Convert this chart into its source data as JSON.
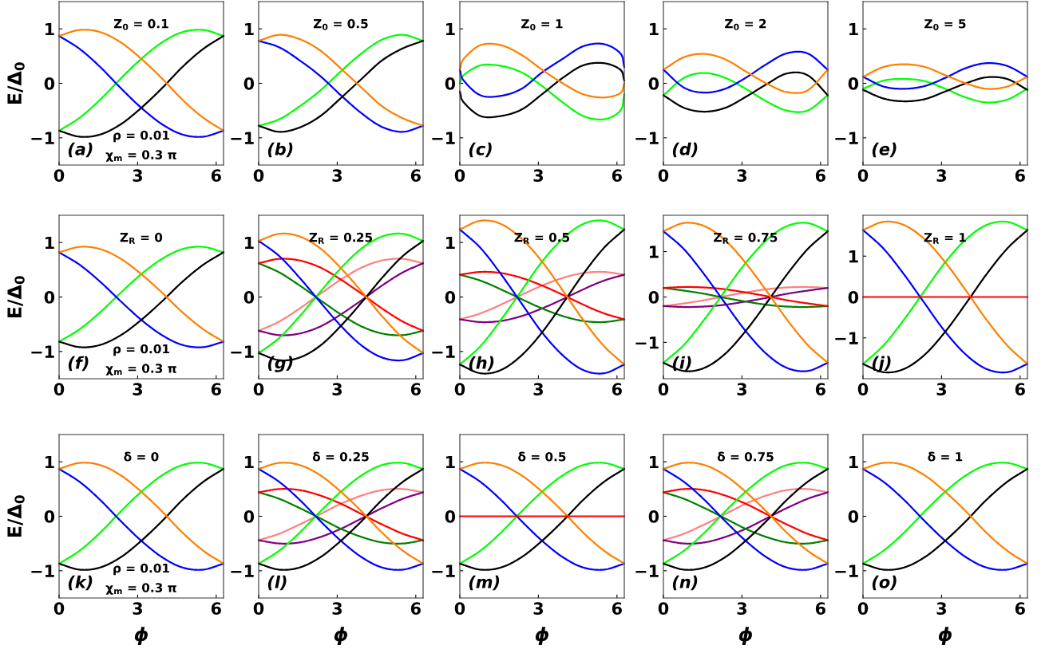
{
  "chart_data": [
    {
      "type": "line",
      "title": "Z$_{0}$ = 0.1",
      "ylabel": "E/Δ$_{0}$",
      "annotations": [
        "(a)",
        "ρ = 0.01",
        "χ$_{m}$ = 0.3 π"
      ],
      "xlim": [
        0,
        6.28
      ],
      "ylim": [
        -1.5,
        1.5
      ],
      "xticks": [
        0,
        3,
        6
      ],
      "yticks": [
        -1,
        0,
        1
      ],
      "x": [
        0,
        0.79,
        1.57,
        2.36,
        3.14,
        3.93,
        4.71,
        5.5,
        6.28
      ],
      "series": [
        {
          "color": "#00ff00",
          "values": [
            -0.87,
            -0.63,
            -0.3,
            0.09,
            0.45,
            0.75,
            0.94,
            0.98,
            0.87
          ]
        },
        {
          "color": "#0000ff",
          "values": [
            0.87,
            0.63,
            0.3,
            -0.09,
            -0.45,
            -0.75,
            -0.94,
            -0.98,
            -0.87
          ]
        },
        {
          "color": "#000000",
          "values": [
            -0.87,
            -0.98,
            -0.94,
            -0.75,
            -0.45,
            -0.09,
            0.3,
            0.63,
            0.87
          ]
        },
        {
          "color": "#ff8000",
          "values": [
            0.87,
            0.98,
            0.94,
            0.75,
            0.45,
            0.09,
            -0.3,
            -0.63,
            -0.87
          ]
        }
      ]
    },
    {
      "type": "line",
      "title": "Z$_{0}$ = 0.5",
      "annotations": [
        "(b)"
      ],
      "xlim": [
        0,
        6.28
      ],
      "ylim": [
        -1.5,
        1.5
      ],
      "xticks": [
        0,
        3,
        6
      ],
      "yticks": [
        -1,
        0,
        1
      ],
      "x": [
        0,
        0.79,
        1.57,
        2.36,
        3.14,
        3.93,
        4.71,
        5.5,
        6.28
      ],
      "series": [
        {
          "color": "#00ff00",
          "values": [
            -0.78,
            -0.66,
            -0.42,
            -0.13,
            0.22,
            0.55,
            0.8,
            0.89,
            0.78
          ]
        },
        {
          "color": "#0000ff",
          "values": [
            0.78,
            0.66,
            0.42,
            0.13,
            -0.22,
            -0.55,
            -0.8,
            -0.89,
            -0.78
          ]
        },
        {
          "color": "#000000",
          "values": [
            -0.78,
            -0.89,
            -0.81,
            -0.6,
            -0.27,
            0.08,
            0.42,
            0.64,
            0.78
          ]
        },
        {
          "color": "#ff8000",
          "values": [
            0.78,
            0.89,
            0.81,
            0.6,
            0.27,
            -0.08,
            -0.42,
            -0.64,
            -0.78
          ]
        }
      ]
    },
    {
      "type": "line",
      "title": "Z$_{0}$ = 1",
      "annotations": [
        "(c)"
      ],
      "xlim": [
        0,
        6.28
      ],
      "ylim": [
        -1.5,
        1.5
      ],
      "xticks": [
        0,
        3,
        6
      ],
      "yticks": [
        -1,
        0,
        1
      ],
      "x": [
        0,
        0.15,
        0.79,
        1.57,
        2.36,
        3.14,
        3.93,
        4.71,
        5.5,
        6.13,
        6.28
      ],
      "series": [
        {
          "color": "#00ff00",
          "values": [
            0.0,
            0.15,
            0.33,
            0.32,
            0.2,
            -0.05,
            -0.35,
            -0.6,
            -0.66,
            -0.5,
            -0.2
          ]
        },
        {
          "color": "#0000ff",
          "values": [
            0.25,
            0.05,
            -0.22,
            -0.23,
            -0.1,
            0.2,
            0.45,
            0.68,
            0.72,
            0.55,
            0.3
          ]
        },
        {
          "color": "#000000",
          "values": [
            -0.15,
            -0.35,
            -0.6,
            -0.6,
            -0.48,
            -0.2,
            0.1,
            0.33,
            0.37,
            0.25,
            0.05
          ]
        },
        {
          "color": "#ff8000",
          "values": [
            0.25,
            0.45,
            0.7,
            0.7,
            0.52,
            0.25,
            0.0,
            -0.2,
            -0.26,
            -0.18,
            0.0
          ]
        }
      ]
    },
    {
      "type": "line",
      "title": "Z$_{0}$ = 2",
      "annotations": [
        "(d)"
      ],
      "xlim": [
        0,
        6.28
      ],
      "ylim": [
        -1.5,
        1.5
      ],
      "xticks": [
        0,
        3,
        6
      ],
      "yticks": [
        -1,
        0,
        1
      ],
      "x": [
        0,
        0.79,
        1.57,
        2.36,
        3.14,
        3.93,
        4.71,
        5.5,
        6.28
      ],
      "series": [
        {
          "color": "#00ff00",
          "values": [
            -0.22,
            0.1,
            0.19,
            0.1,
            -0.1,
            -0.33,
            -0.5,
            -0.5,
            -0.22
          ]
        },
        {
          "color": "#0000ff",
          "values": [
            0.25,
            -0.08,
            -0.17,
            -0.1,
            0.1,
            0.35,
            0.55,
            0.55,
            0.25
          ]
        },
        {
          "color": "#000000",
          "values": [
            -0.22,
            -0.45,
            -0.52,
            -0.45,
            -0.25,
            -0.02,
            0.18,
            0.15,
            -0.22
          ]
        },
        {
          "color": "#ff8000",
          "values": [
            0.25,
            0.48,
            0.54,
            0.44,
            0.22,
            0.0,
            -0.16,
            -0.13,
            0.25
          ]
        }
      ]
    },
    {
      "type": "line",
      "title": "Z$_{0}$ = 5",
      "annotations": [
        "(e)"
      ],
      "xlim": [
        0,
        6.28
      ],
      "ylim": [
        -1.5,
        1.5
      ],
      "xticks": [
        0,
        3,
        6
      ],
      "yticks": [
        -1,
        0,
        1
      ],
      "x": [
        0,
        0.79,
        1.57,
        2.36,
        3.14,
        3.93,
        4.71,
        5.5,
        6.28
      ],
      "series": [
        {
          "color": "#00ff00",
          "values": [
            -0.1,
            0.05,
            0.08,
            0.04,
            -0.1,
            -0.26,
            -0.35,
            -0.3,
            -0.1
          ]
        },
        {
          "color": "#0000ff",
          "values": [
            0.12,
            -0.06,
            -0.1,
            -0.05,
            0.1,
            0.28,
            0.37,
            0.32,
            0.12
          ]
        },
        {
          "color": "#000000",
          "values": [
            -0.12,
            -0.28,
            -0.33,
            -0.29,
            -0.15,
            0.0,
            0.11,
            0.08,
            -0.12
          ]
        },
        {
          "color": "#ff8000",
          "values": [
            0.12,
            0.3,
            0.35,
            0.3,
            0.15,
            0.0,
            -0.1,
            -0.06,
            0.12
          ]
        }
      ]
    },
    {
      "type": "line",
      "title": "Z$_{R}$ = 0",
      "ylabel": "E/Δ$_{0}$",
      "annotations": [
        "(f)",
        "ρ = 0.01",
        "χ$_{m}$ = 0.3 π"
      ],
      "xlim": [
        0,
        6.28
      ],
      "ylim": [
        -1.5,
        1.5
      ],
      "xticks": [
        0,
        3,
        6
      ],
      "yticks": [
        -1,
        0,
        1
      ],
      "x": [
        0,
        0.79,
        1.57,
        2.36,
        3.14,
        3.93,
        4.71,
        5.5,
        6.28
      ],
      "series": [
        {
          "color": "#00ff00",
          "values": [
            -0.82,
            -0.59,
            -0.28,
            0.08,
            0.42,
            0.7,
            0.88,
            0.92,
            0.82
          ]
        },
        {
          "color": "#0000ff",
          "values": [
            0.82,
            0.59,
            0.28,
            -0.08,
            -0.42,
            -0.7,
            -0.88,
            -0.92,
            -0.82
          ]
        },
        {
          "color": "#000000",
          "values": [
            -0.82,
            -0.92,
            -0.88,
            -0.7,
            -0.42,
            -0.08,
            0.28,
            0.59,
            0.82
          ]
        },
        {
          "color": "#ff8000",
          "values": [
            0.82,
            0.92,
            0.88,
            0.7,
            0.42,
            0.08,
            -0.28,
            -0.59,
            -0.82
          ]
        }
      ]
    },
    {
      "type": "line",
      "title": "Z$_{R}$ = 0.25",
      "annotations": [
        "(g)"
      ],
      "xlim": [
        0,
        6.28
      ],
      "ylim": [
        -1.5,
        1.5
      ],
      "xticks": [
        0,
        3,
        6
      ],
      "yticks": [
        -1,
        0,
        1
      ],
      "x": [
        0,
        0.79,
        1.57,
        2.36,
        3.14,
        3.93,
        4.71,
        5.5,
        6.28
      ],
      "series": [
        {
          "color": "#ff8080",
          "values": [
            -0.62,
            -0.45,
            -0.21,
            0.06,
            0.32,
            0.54,
            0.67,
            0.7,
            0.62
          ]
        },
        {
          "color": "#800080",
          "values": [
            -0.62,
            -0.7,
            -0.67,
            -0.54,
            -0.32,
            -0.06,
            0.21,
            0.45,
            0.62
          ]
        },
        {
          "color": "#008000",
          "values": [
            0.62,
            0.45,
            0.21,
            -0.06,
            -0.32,
            -0.54,
            -0.67,
            -0.7,
            -0.62
          ]
        },
        {
          "color": "#ff0000",
          "values": [
            0.62,
            0.7,
            0.67,
            0.54,
            0.32,
            0.06,
            -0.21,
            -0.45,
            -0.62
          ]
        },
        {
          "color": "#00ff00",
          "values": [
            -1.03,
            -0.75,
            -0.35,
            0.1,
            0.53,
            0.89,
            1.11,
            1.16,
            1.03
          ]
        },
        {
          "color": "#0000ff",
          "values": [
            1.03,
            0.75,
            0.35,
            -0.1,
            -0.53,
            -0.89,
            -1.11,
            -1.16,
            -1.03
          ]
        },
        {
          "color": "#000000",
          "values": [
            -1.03,
            -1.16,
            -1.11,
            -0.89,
            -0.53,
            -0.1,
            0.35,
            0.75,
            1.03
          ]
        },
        {
          "color": "#ff8000",
          "values": [
            1.03,
            1.16,
            1.11,
            0.89,
            0.53,
            0.1,
            -0.35,
            -0.75,
            -1.03
          ]
        }
      ]
    },
    {
      "type": "line",
      "title": "Z$_{R}$ = 0.5",
      "annotations": [
        "(h)"
      ],
      "xlim": [
        0,
        6.28
      ],
      "ylim": [
        -1.5,
        1.5
      ],
      "xticks": [
        0,
        3,
        6
      ],
      "yticks": [
        -1,
        0,
        1
      ],
      "x": [
        0,
        0.79,
        1.57,
        2.36,
        3.14,
        3.93,
        4.71,
        5.5,
        6.28
      ],
      "series": [
        {
          "color": "#ff8080",
          "values": [
            -0.41,
            -0.3,
            -0.14,
            0.04,
            0.21,
            0.35,
            0.44,
            0.46,
            0.41
          ]
        },
        {
          "color": "#800080",
          "values": [
            -0.41,
            -0.46,
            -0.44,
            -0.35,
            -0.21,
            -0.04,
            0.14,
            0.3,
            0.41
          ]
        },
        {
          "color": "#008000",
          "values": [
            0.41,
            0.3,
            0.14,
            -0.04,
            -0.21,
            -0.35,
            -0.44,
            -0.46,
            -0.41
          ]
        },
        {
          "color": "#ff0000",
          "values": [
            0.41,
            0.46,
            0.44,
            0.35,
            0.21,
            0.04,
            -0.14,
            -0.3,
            -0.41
          ]
        },
        {
          "color": "#00ff00",
          "values": [
            -1.24,
            -0.9,
            -0.42,
            0.12,
            0.65,
            1.07,
            1.34,
            1.4,
            1.24
          ]
        },
        {
          "color": "#0000ff",
          "values": [
            1.24,
            0.9,
            0.42,
            -0.12,
            -0.65,
            -1.07,
            -1.34,
            -1.4,
            -1.24
          ]
        },
        {
          "color": "#000000",
          "values": [
            -1.24,
            -1.4,
            -1.34,
            -1.07,
            -0.65,
            -0.12,
            0.42,
            0.9,
            1.24
          ]
        },
        {
          "color": "#ff8000",
          "values": [
            1.24,
            1.4,
            1.34,
            1.07,
            0.65,
            0.12,
            -0.42,
            -0.9,
            -1.24
          ]
        }
      ]
    },
    {
      "type": "line",
      "title": "Z$_{R}$ = 0.75",
      "annotations": [
        "(i)"
      ],
      "xlim": [
        0,
        6.28
      ],
      "ylim": [
        -1.8,
        1.8
      ],
      "xticks": [
        0,
        3,
        6
      ],
      "yticks": [
        -1,
        0,
        1
      ],
      "x": [
        0,
        0.79,
        1.57,
        2.36,
        3.14,
        3.93,
        4.71,
        5.5,
        6.28
      ],
      "series": [
        {
          "color": "#ff8080",
          "values": [
            -0.2,
            -0.14,
            -0.07,
            0.02,
            0.1,
            0.17,
            0.21,
            0.22,
            0.2
          ]
        },
        {
          "color": "#800080",
          "values": [
            -0.2,
            -0.22,
            -0.21,
            -0.17,
            -0.1,
            -0.02,
            0.07,
            0.14,
            0.2
          ]
        },
        {
          "color": "#008000",
          "values": [
            0.2,
            0.14,
            0.07,
            -0.02,
            -0.1,
            -0.17,
            -0.21,
            -0.22,
            -0.2
          ]
        },
        {
          "color": "#ff0000",
          "values": [
            0.2,
            0.22,
            0.21,
            0.17,
            0.1,
            0.02,
            -0.07,
            -0.14,
            -0.2
          ]
        },
        {
          "color": "#00ff00",
          "values": [
            -1.45,
            -1.05,
            -0.49,
            0.14,
            0.75,
            1.25,
            1.56,
            1.63,
            1.45
          ]
        },
        {
          "color": "#0000ff",
          "values": [
            1.45,
            1.05,
            0.49,
            -0.14,
            -0.75,
            -1.25,
            -1.56,
            -1.63,
            -1.45
          ]
        },
        {
          "color": "#000000",
          "values": [
            -1.45,
            -1.63,
            -1.56,
            -1.25,
            -0.75,
            -0.14,
            0.49,
            1.05,
            1.45
          ]
        },
        {
          "color": "#ff8000",
          "values": [
            1.45,
            1.63,
            1.56,
            1.25,
            0.75,
            0.14,
            -0.49,
            -1.05,
            -1.45
          ]
        }
      ]
    },
    {
      "type": "line",
      "title": "Z$_{R}$ = 1",
      "annotations": [
        "(j)"
      ],
      "xlim": [
        0,
        6.28
      ],
      "ylim": [
        -2,
        2
      ],
      "xticks": [
        0,
        3,
        6
      ],
      "yticks": [
        -1,
        0,
        1
      ],
      "x": [
        0,
        0.79,
        1.57,
        2.36,
        3.14,
        3.93,
        4.71,
        5.5,
        6.28
      ],
      "series": [
        {
          "color": "#00ff00",
          "values": [
            -1.64,
            -1.18,
            -0.55,
            0.16,
            0.85,
            1.41,
            1.76,
            1.84,
            1.64
          ]
        },
        {
          "color": "#0000ff",
          "values": [
            1.64,
            1.18,
            0.55,
            -0.16,
            -0.85,
            -1.41,
            -1.76,
            -1.84,
            -1.64
          ]
        },
        {
          "color": "#000000",
          "values": [
            -1.64,
            -1.84,
            -1.76,
            -1.41,
            -0.85,
            -0.16,
            0.55,
            1.18,
            1.64
          ]
        },
        {
          "color": "#ff8000",
          "values": [
            1.64,
            1.84,
            1.76,
            1.41,
            0.85,
            0.16,
            -0.55,
            -1.18,
            -1.64
          ]
        },
        {
          "color": "#ff0000",
          "values": [
            0,
            0,
            0,
            0,
            0,
            0,
            0,
            0,
            0
          ]
        }
      ]
    },
    {
      "type": "line",
      "title": "δ = 0",
      "ylabel": "E/Δ$_{0}$",
      "xlabel": "ϕ",
      "annotations": [
        "(k)",
        "ρ = 0.01",
        "χ$_{m}$ = 0.3 π"
      ],
      "xlim": [
        0,
        6.28
      ],
      "ylim": [
        -1.5,
        1.5
      ],
      "xticks": [
        0,
        3,
        6
      ],
      "yticks": [
        -1,
        0,
        1
      ],
      "x": [
        0,
        0.79,
        1.57,
        2.36,
        3.14,
        3.93,
        4.71,
        5.5,
        6.28
      ],
      "series": [
        {
          "color": "#00ff00",
          "values": [
            -0.87,
            -0.63,
            -0.3,
            0.09,
            0.45,
            0.75,
            0.94,
            0.98,
            0.87
          ]
        },
        {
          "color": "#0000ff",
          "values": [
            0.87,
            0.63,
            0.3,
            -0.09,
            -0.45,
            -0.75,
            -0.94,
            -0.98,
            -0.87
          ]
        },
        {
          "color": "#000000",
          "values": [
            -0.87,
            -0.98,
            -0.94,
            -0.75,
            -0.45,
            -0.09,
            0.3,
            0.63,
            0.87
          ]
        },
        {
          "color": "#ff8000",
          "values": [
            0.87,
            0.98,
            0.94,
            0.75,
            0.45,
            0.09,
            -0.3,
            -0.63,
            -0.87
          ]
        }
      ]
    },
    {
      "type": "line",
      "title": "δ = 0.25",
      "xlabel": "ϕ",
      "annotations": [
        "(l)"
      ],
      "xlim": [
        0,
        6.28
      ],
      "ylim": [
        -1.5,
        1.5
      ],
      "xticks": [
        0,
        3,
        6
      ],
      "yticks": [
        -1,
        0,
        1
      ],
      "x": [
        0,
        0.79,
        1.57,
        2.36,
        3.14,
        3.93,
        4.71,
        5.5,
        6.28
      ],
      "series": [
        {
          "color": "#ff8080",
          "values": [
            -0.44,
            -0.32,
            -0.15,
            0.04,
            0.23,
            0.38,
            0.48,
            0.5,
            0.44
          ]
        },
        {
          "color": "#800080",
          "values": [
            -0.44,
            -0.5,
            -0.48,
            -0.38,
            -0.23,
            -0.04,
            0.15,
            0.32,
            0.44
          ]
        },
        {
          "color": "#008000",
          "values": [
            0.44,
            0.32,
            0.15,
            -0.04,
            -0.23,
            -0.38,
            -0.48,
            -0.5,
            -0.44
          ]
        },
        {
          "color": "#ff0000",
          "values": [
            0.44,
            0.5,
            0.48,
            0.38,
            0.23,
            0.04,
            -0.15,
            -0.32,
            -0.44
          ]
        },
        {
          "color": "#00ff00",
          "values": [
            -0.87,
            -0.63,
            -0.3,
            0.09,
            0.45,
            0.75,
            0.94,
            0.98,
            0.87
          ]
        },
        {
          "color": "#0000ff",
          "values": [
            0.87,
            0.63,
            0.3,
            -0.09,
            -0.45,
            -0.75,
            -0.94,
            -0.98,
            -0.87
          ]
        },
        {
          "color": "#000000",
          "values": [
            -0.87,
            -0.98,
            -0.94,
            -0.75,
            -0.45,
            -0.09,
            0.3,
            0.63,
            0.87
          ]
        },
        {
          "color": "#ff8000",
          "values": [
            0.87,
            0.98,
            0.94,
            0.75,
            0.45,
            0.09,
            -0.3,
            -0.63,
            -0.87
          ]
        }
      ]
    },
    {
      "type": "line",
      "title": "δ = 0.5",
      "xlabel": "ϕ",
      "annotations": [
        "(m)"
      ],
      "xlim": [
        0,
        6.28
      ],
      "ylim": [
        -1.5,
        1.5
      ],
      "xticks": [
        0,
        3,
        6
      ],
      "yticks": [
        -1,
        0,
        1
      ],
      "x": [
        0,
        0.79,
        1.57,
        2.36,
        3.14,
        3.93,
        4.71,
        5.5,
        6.28
      ],
      "series": [
        {
          "color": "#00ff00",
          "values": [
            -0.87,
            -0.63,
            -0.3,
            0.09,
            0.45,
            0.75,
            0.94,
            0.98,
            0.87
          ]
        },
        {
          "color": "#0000ff",
          "values": [
            0.87,
            0.63,
            0.3,
            -0.09,
            -0.45,
            -0.75,
            -0.94,
            -0.98,
            -0.87
          ]
        },
        {
          "color": "#000000",
          "values": [
            -0.87,
            -0.98,
            -0.94,
            -0.75,
            -0.45,
            -0.09,
            0.3,
            0.63,
            0.87
          ]
        },
        {
          "color": "#ff8000",
          "values": [
            0.87,
            0.98,
            0.94,
            0.75,
            0.45,
            0.09,
            -0.3,
            -0.63,
            -0.87
          ]
        },
        {
          "color": "#ff0000",
          "values": [
            0,
            0,
            0,
            0,
            0,
            0,
            0,
            0,
            0
          ]
        }
      ]
    },
    {
      "type": "line",
      "title": "δ = 0.75",
      "xlabel": "ϕ",
      "annotations": [
        "(n)"
      ],
      "xlim": [
        0,
        6.28
      ],
      "ylim": [
        -1.5,
        1.5
      ],
      "xticks": [
        0,
        3,
        6
      ],
      "yticks": [
        -1,
        0,
        1
      ],
      "x": [
        0,
        0.79,
        1.57,
        2.36,
        3.14,
        3.93,
        4.71,
        5.5,
        6.28
      ],
      "series": [
        {
          "color": "#ff8080",
          "values": [
            -0.44,
            -0.32,
            -0.15,
            0.04,
            0.23,
            0.38,
            0.48,
            0.5,
            0.44
          ]
        },
        {
          "color": "#800080",
          "values": [
            -0.44,
            -0.5,
            -0.48,
            -0.38,
            -0.23,
            -0.04,
            0.15,
            0.32,
            0.44
          ]
        },
        {
          "color": "#008000",
          "values": [
            0.44,
            0.32,
            0.15,
            -0.04,
            -0.23,
            -0.38,
            -0.48,
            -0.5,
            -0.44
          ]
        },
        {
          "color": "#ff0000",
          "values": [
            0.44,
            0.5,
            0.48,
            0.38,
            0.23,
            0.04,
            -0.15,
            -0.32,
            -0.44
          ]
        },
        {
          "color": "#00ff00",
          "values": [
            -0.87,
            -0.63,
            -0.3,
            0.09,
            0.45,
            0.75,
            0.94,
            0.98,
            0.87
          ]
        },
        {
          "color": "#0000ff",
          "values": [
            0.87,
            0.63,
            0.3,
            -0.09,
            -0.45,
            -0.75,
            -0.94,
            -0.98,
            -0.87
          ]
        },
        {
          "color": "#000000",
          "values": [
            -0.87,
            -0.98,
            -0.94,
            -0.75,
            -0.45,
            -0.09,
            0.3,
            0.63,
            0.87
          ]
        },
        {
          "color": "#ff8000",
          "values": [
            0.87,
            0.98,
            0.94,
            0.75,
            0.45,
            0.09,
            -0.3,
            -0.63,
            -0.87
          ]
        }
      ]
    },
    {
      "type": "line",
      "title": "δ = 1",
      "xlabel": "ϕ",
      "annotations": [
        "(o)"
      ],
      "xlim": [
        0,
        6.28
      ],
      "ylim": [
        -1.5,
        1.5
      ],
      "xticks": [
        0,
        3,
        6
      ],
      "yticks": [
        -1,
        0,
        1
      ],
      "x": [
        0,
        0.79,
        1.57,
        2.36,
        3.14,
        3.93,
        4.71,
        5.5,
        6.28
      ],
      "series": [
        {
          "color": "#00ff00",
          "values": [
            -0.87,
            -0.63,
            -0.3,
            0.09,
            0.45,
            0.75,
            0.94,
            0.98,
            0.87
          ]
        },
        {
          "color": "#0000ff",
          "values": [
            0.87,
            0.63,
            0.3,
            -0.09,
            -0.45,
            -0.75,
            -0.94,
            -0.98,
            -0.87
          ]
        },
        {
          "color": "#000000",
          "values": [
            -0.87,
            -0.98,
            -0.94,
            -0.75,
            -0.45,
            -0.09,
            0.3,
            0.63,
            0.87
          ]
        },
        {
          "color": "#ff8000",
          "values": [
            0.87,
            0.98,
            0.94,
            0.75,
            0.45,
            0.09,
            -0.3,
            -0.63,
            -0.87
          ]
        }
      ]
    }
  ]
}
